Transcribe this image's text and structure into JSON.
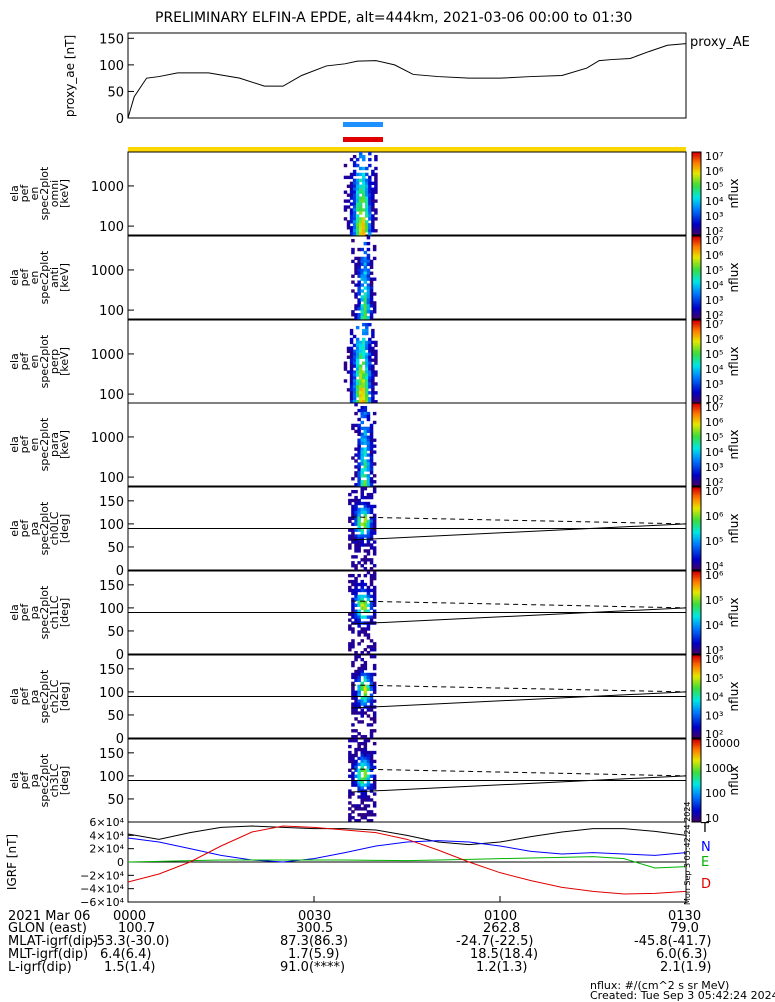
{
  "title": "PRELIMINARY ELFIN-A EPDE, alt=444km, 2021-03-06 00:00 to 01:30",
  "footer": {
    "units": "nflux: #/(cm^2 s sr MeV)",
    "created": "Created: Tue Sep  3 05:42:24 2024",
    "side_stamp": "Mon Sep  3 05:42:24 2024"
  },
  "colors": {
    "ae_line": "#000000",
    "bar_blue": "#1E90FF",
    "bar_red": "#E00000",
    "yellow_band": "#FFD700",
    "igrf_T": "#000000",
    "igrf_N": "#0000FF",
    "igrf_E": "#00B400",
    "igrf_D": "#E00000"
  },
  "chart_data": [
    {
      "type": "line",
      "panel": "proxy_ae",
      "ylabel": "proxy_ae [nT]",
      "legend": "proxy_AE",
      "ylim": [
        0,
        160
      ],
      "yticks": [
        "0",
        "50",
        "100",
        "150"
      ],
      "x_minutes": [
        0,
        1,
        3,
        5,
        8,
        13,
        18,
        22,
        25,
        28,
        32,
        35,
        37,
        40,
        43,
        46,
        50,
        55,
        60,
        65,
        70,
        74,
        76,
        78,
        81,
        84,
        87,
        90
      ],
      "values": [
        0,
        40,
        75,
        78,
        85,
        85,
        75,
        60,
        60,
        80,
        98,
        102,
        107,
        108,
        100,
        82,
        78,
        75,
        75,
        78,
        80,
        94,
        108,
        110,
        112,
        125,
        137,
        140
      ]
    },
    {
      "type": "heatmap",
      "panel": "ela_pef_en_spec2plot_omni",
      "ylabel": [
        "ela",
        "pef",
        "en",
        "spec2plot",
        "omni",
        "[keV]"
      ],
      "yticks": [
        "100",
        "1000"
      ],
      "colorbar_ticks": [
        "10²",
        "10³",
        "10⁴",
        "10⁵",
        "10⁶",
        "10⁷"
      ],
      "colorbar_label": "nflux",
      "active_minutes": [
        34.8,
        40.2
      ],
      "peak": "10⁶"
    },
    {
      "type": "heatmap",
      "panel": "ela_pef_en_spec2plot_anti",
      "ylabel": [
        "ela",
        "pef",
        "en",
        "spec2plot",
        "anti",
        "[keV]"
      ],
      "yticks": [
        "100",
        "1000"
      ],
      "colorbar_ticks": [
        "10²",
        "10³",
        "10⁴",
        "10⁵",
        "10⁶",
        "10⁷"
      ],
      "colorbar_label": "nflux",
      "active_minutes": [
        36.0,
        40.0
      ],
      "peak": "10⁵"
    },
    {
      "type": "heatmap",
      "panel": "ela_pef_en_spec2plot_perp",
      "ylabel": [
        "ela",
        "pef",
        "en",
        "spec2plot",
        "perp",
        "[keV]"
      ],
      "yticks": [
        "100",
        "1000"
      ],
      "colorbar_ticks": [
        "10²",
        "10³",
        "10⁴",
        "10⁵",
        "10⁶",
        "10⁷"
      ],
      "colorbar_label": "nflux",
      "active_minutes": [
        34.8,
        40.2
      ],
      "peak": "10⁶"
    },
    {
      "type": "heatmap",
      "panel": "ela_pef_en_spec2plot_para",
      "ylabel": [
        "ela",
        "pef",
        "en",
        "spec2plot",
        "para",
        "[keV]"
      ],
      "yticks": [
        "100",
        "1000"
      ],
      "colorbar_ticks": [
        "10²",
        "10³",
        "10⁴",
        "10⁵",
        "10⁶",
        "10⁷"
      ],
      "colorbar_label": "nflux",
      "active_minutes": [
        36.0,
        40.0
      ],
      "peak": "10⁵"
    },
    {
      "type": "heatmap",
      "panel": "ela_pef_pa_spec2plot_ch0LC",
      "ylabel": [
        "ela",
        "pef",
        "pa",
        "spec2plot",
        "ch0LC",
        "[deg]"
      ],
      "ylim": [
        0,
        180
      ],
      "yticks": [
        "0",
        "50",
        "100",
        "150"
      ],
      "colorbar_ticks": [
        "10⁴",
        "10⁵",
        "10⁶",
        "10⁷"
      ],
      "colorbar_label": "nflux",
      "active_minutes": [
        35.5,
        40.0
      ]
    },
    {
      "type": "heatmap",
      "panel": "ela_pef_pa_spec2plot_ch1LC",
      "ylabel": [
        "ela",
        "pef",
        "pa",
        "spec2plot",
        "ch1LC",
        "[deg]"
      ],
      "ylim": [
        0,
        180
      ],
      "yticks": [
        "0",
        "50",
        "100",
        "150"
      ],
      "colorbar_ticks": [
        "10³",
        "10⁴",
        "10⁵",
        "10⁶"
      ],
      "colorbar_label": "nflux",
      "active_minutes": [
        35.5,
        40.0
      ]
    },
    {
      "type": "heatmap",
      "panel": "ela_pef_pa_spec2plot_ch2LC",
      "ylabel": [
        "ela",
        "pef",
        "pa",
        "spec2plot",
        "ch2LC",
        "[deg]"
      ],
      "ylim": [
        0,
        180
      ],
      "yticks": [
        "0",
        "50",
        "100",
        "150"
      ],
      "colorbar_ticks": [
        "10²",
        "10³",
        "10⁴",
        "10⁵",
        "10⁶"
      ],
      "colorbar_label": "nflux",
      "active_minutes": [
        36.0,
        40.0
      ]
    },
    {
      "type": "heatmap",
      "panel": "ela_pef_pa_spec2plot_ch3LC",
      "ylabel": [
        "ela",
        "pef",
        "pa",
        "spec2plot",
        "ch3LC",
        "[deg]"
      ],
      "ylim": [
        0,
        180
      ],
      "yticks": [
        "50",
        "100",
        "150"
      ],
      "colorbar_ticks": [
        "10",
        "100",
        "1000",
        "10000"
      ],
      "colorbar_label": "nflux",
      "active_minutes": [
        35.5,
        40.0
      ]
    },
    {
      "type": "line",
      "panel": "IGRF",
      "ylabel": "IGRF [nT]",
      "ylim": [
        -60000,
        60000
      ],
      "yticks": [
        "6×10⁴",
        "4×10⁴",
        "2×10⁴",
        "0",
        "−2×10⁴",
        "−4×10⁴",
        "−6×10⁴"
      ],
      "x_minutes": [
        0,
        5,
        10,
        15,
        20,
        25,
        30,
        35,
        40,
        45,
        50,
        55,
        60,
        65,
        70,
        75,
        80,
        85,
        90
      ],
      "series": [
        {
          "name": "T",
          "values": [
            42000,
            34000,
            44000,
            52000,
            54000,
            52000,
            50000,
            50000,
            48000,
            40000,
            30000,
            26000,
            30000,
            38000,
            45000,
            50000,
            50000,
            46000,
            40000
          ]
        },
        {
          "name": "N",
          "values": [
            36000,
            30000,
            20000,
            10000,
            3000,
            0,
            5000,
            14000,
            24000,
            30000,
            32000,
            30000,
            24000,
            16000,
            12000,
            14000,
            12000,
            10000,
            14000
          ]
        },
        {
          "name": "E",
          "values": [
            0,
            1000,
            2000,
            3000,
            3000,
            3000,
            3000,
            3000,
            2500,
            2000,
            3000,
            4000,
            5000,
            6000,
            7000,
            8000,
            5000,
            -9000,
            -7000
          ]
        },
        {
          "name": "D",
          "values": [
            -30000,
            -18000,
            0,
            24000,
            45000,
            54000,
            52000,
            48000,
            44000,
            34000,
            18000,
            0,
            -16000,
            -28000,
            -38000,
            -44000,
            -48000,
            -47000,
            -44000
          ]
        }
      ]
    }
  ],
  "time_axis": {
    "label": "2021 Mar 06",
    "ticks": [
      "0000",
      "0030",
      "0100",
      "0130"
    ]
  },
  "ephemeris": {
    "rows": [
      {
        "label": "GLON (east)",
        "values": [
          "100.7",
          "300.5",
          "262.8",
          "79.0"
        ]
      },
      {
        "label": "MLAT-igrf(dip)",
        "values": [
          "-53.3(-30.0)",
          "87.3(86.3)",
          "-24.7(-22.5)",
          "-45.8(-41.7)"
        ]
      },
      {
        "label": "MLT-igrf(dip)",
        "values": [
          "6.4(6.4)",
          "1.7(5.9)",
          "18.5(18.4)",
          "6.0(6.3)"
        ]
      },
      {
        "label": "L-igrf(dip)",
        "values": [
          "1.5(1.4)",
          "91.0(****)",
          "1.2(1.3)",
          "2.1(1.9)"
        ]
      }
    ]
  }
}
